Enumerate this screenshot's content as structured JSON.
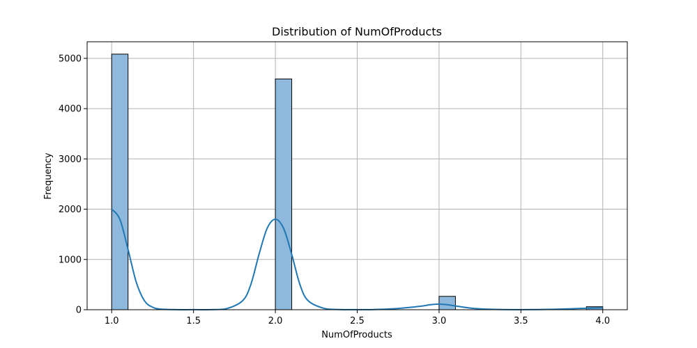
{
  "chart_data": {
    "type": "bar",
    "subtype": "histogram-with-kde",
    "title": "Distribution of NumOfProducts",
    "xlabel": "NumOfProducts",
    "ylabel": "Frequency",
    "xlim": [
      0.85,
      4.15
    ],
    "ylim": [
      0,
      5330
    ],
    "x_ticks": [
      1.0,
      1.5,
      2.0,
      2.5,
      3.0,
      3.5,
      4.0
    ],
    "x_tick_labels": [
      "1.0",
      "1.5",
      "2.0",
      "2.5",
      "3.0",
      "3.5",
      "4.0"
    ],
    "y_ticks": [
      0,
      1000,
      2000,
      3000,
      4000,
      5000
    ],
    "y_tick_labels": [
      "0",
      "1000",
      "2000",
      "3000",
      "4000",
      "5000"
    ],
    "grid": true,
    "bin_width": 0.1,
    "bars": [
      {
        "x_start": 1.0,
        "x_end": 1.1,
        "value": 5084
      },
      {
        "x_start": 2.0,
        "x_end": 2.1,
        "value": 4590
      },
      {
        "x_start": 3.0,
        "x_end": 3.1,
        "value": 266
      },
      {
        "x_start": 3.9,
        "x_end": 4.0,
        "value": 60
      }
    ],
    "kde": {
      "x": [
        1.0,
        1.05,
        1.1,
        1.15,
        1.2,
        1.25,
        1.3,
        1.4,
        1.5,
        1.6,
        1.7,
        1.8,
        1.85,
        1.9,
        1.95,
        2.0,
        2.05,
        2.1,
        2.15,
        2.2,
        2.3,
        2.4,
        2.5,
        2.6,
        2.7,
        2.8,
        2.9,
        2.95,
        3.0,
        3.05,
        3.1,
        3.2,
        3.3,
        3.4,
        3.5,
        3.6,
        3.7,
        3.8,
        3.9,
        4.0
      ],
      "y": [
        2000,
        1800,
        1200,
        550,
        180,
        50,
        12,
        2,
        1,
        2,
        20,
        180,
        500,
        1100,
        1620,
        1800,
        1620,
        1100,
        500,
        180,
        25,
        4,
        2,
        4,
        15,
        40,
        75,
        100,
        110,
        100,
        75,
        30,
        10,
        3,
        2,
        3,
        8,
        18,
        30,
        38
      ]
    },
    "colors": {
      "bar_fill": "#8fb9dc",
      "bar_edge": "#000000",
      "kde_line": "#1f77b4",
      "grid": "#b0b0b0"
    }
  }
}
